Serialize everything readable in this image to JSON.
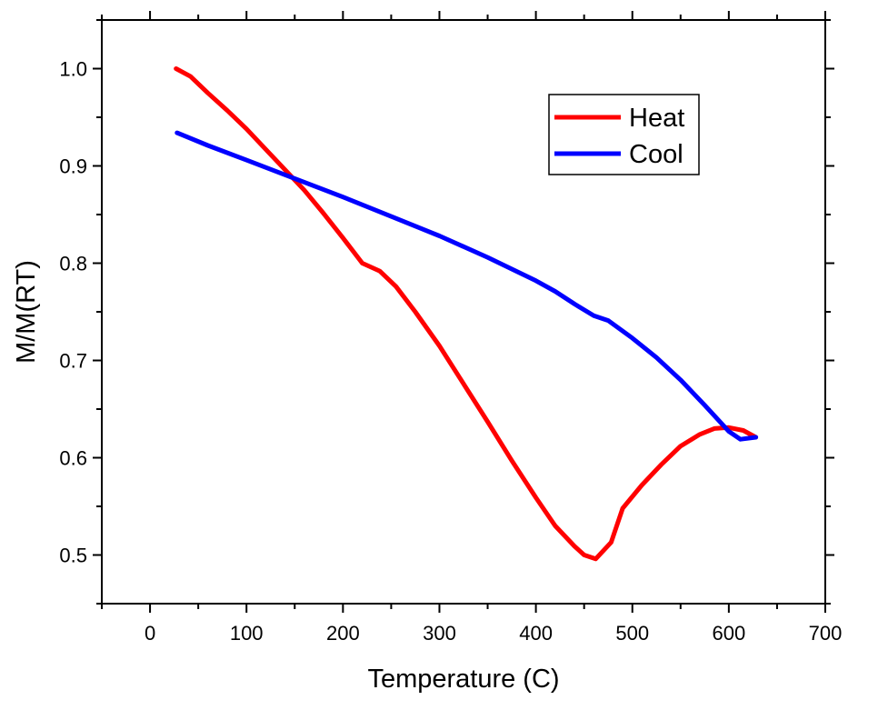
{
  "chart_data": {
    "type": "line",
    "title": "",
    "xlabel": "Temperature (C)",
    "ylabel": "M/M(RT)",
    "xlim": [
      -50,
      700
    ],
    "ylim": [
      0.45,
      1.05
    ],
    "x_ticks": [
      0,
      100,
      200,
      300,
      400,
      500,
      600,
      700
    ],
    "x_tick_labels": [
      "0",
      "100",
      "200",
      "300",
      "400",
      "500",
      "600",
      "700"
    ],
    "y_ticks": [
      0.5,
      0.6,
      0.7,
      0.8,
      0.9,
      1.0
    ],
    "y_tick_labels": [
      "0.5",
      "0.6",
      "0.7",
      "0.8",
      "0.9",
      "1.0"
    ],
    "grid": false,
    "legend_position": "top-right",
    "series": [
      {
        "name": "Heat",
        "color": "#ff0000",
        "points": [
          [
            27,
            1.0
          ],
          [
            42,
            0.992
          ],
          [
            60,
            0.975
          ],
          [
            80,
            0.957
          ],
          [
            100,
            0.938
          ],
          [
            120,
            0.917
          ],
          [
            140,
            0.896
          ],
          [
            160,
            0.875
          ],
          [
            180,
            0.851
          ],
          [
            200,
            0.826
          ],
          [
            220,
            0.8
          ],
          [
            238,
            0.792
          ],
          [
            255,
            0.776
          ],
          [
            275,
            0.75
          ],
          [
            300,
            0.715
          ],
          [
            325,
            0.676
          ],
          [
            350,
            0.637
          ],
          [
            375,
            0.597
          ],
          [
            400,
            0.559
          ],
          [
            420,
            0.53
          ],
          [
            440,
            0.509
          ],
          [
            450,
            0.5
          ],
          [
            462,
            0.496
          ],
          [
            478,
            0.513
          ],
          [
            490,
            0.548
          ],
          [
            510,
            0.572
          ],
          [
            530,
            0.593
          ],
          [
            550,
            0.612
          ],
          [
            570,
            0.624
          ],
          [
            585,
            0.63
          ],
          [
            600,
            0.631
          ],
          [
            615,
            0.628
          ],
          [
            628,
            0.621
          ]
        ]
      },
      {
        "name": "Cool",
        "color": "#0000ff",
        "points": [
          [
            628,
            0.621
          ],
          [
            612,
            0.619
          ],
          [
            600,
            0.627
          ],
          [
            575,
            0.654
          ],
          [
            550,
            0.68
          ],
          [
            525,
            0.703
          ],
          [
            500,
            0.723
          ],
          [
            475,
            0.741
          ],
          [
            460,
            0.746
          ],
          [
            440,
            0.758
          ],
          [
            420,
            0.771
          ],
          [
            400,
            0.782
          ],
          [
            350,
            0.806
          ],
          [
            300,
            0.828
          ],
          [
            250,
            0.848
          ],
          [
            200,
            0.868
          ],
          [
            150,
            0.887
          ],
          [
            100,
            0.906
          ],
          [
            60,
            0.921
          ],
          [
            28,
            0.934
          ]
        ]
      }
    ]
  }
}
